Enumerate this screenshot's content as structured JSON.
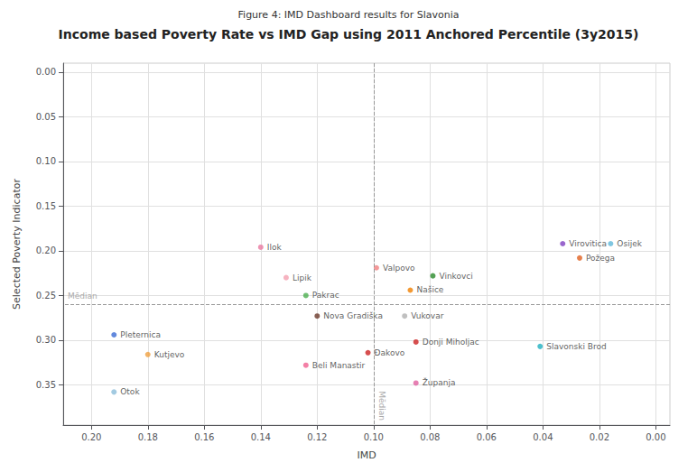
{
  "chart_data": {
    "type": "scatter",
    "subtitle": "Figure 4: IMD Dashboard results for Slavonia",
    "title": "Income based Poverty Rate vs IMD Gap using 2011 Anchored Percentile (3y2015)",
    "xlabel": "IMD",
    "ylabel": "Selected Poverty Indicator",
    "xlim": [
      0.21,
      -0.005
    ],
    "ylim": [
      0.395,
      -0.01
    ],
    "xticks": [
      {
        "value": 0.2,
        "label": "0.20"
      },
      {
        "value": 0.18,
        "label": "0.18"
      },
      {
        "value": 0.16,
        "label": "0.16"
      },
      {
        "value": 0.14,
        "label": "0.14"
      },
      {
        "value": 0.12,
        "label": "0.12"
      },
      {
        "value": 0.1,
        "label": "0.10"
      },
      {
        "value": 0.08,
        "label": "0.08"
      },
      {
        "value": 0.06,
        "label": "0.06"
      },
      {
        "value": 0.04,
        "label": "0.04"
      },
      {
        "value": 0.02,
        "label": "0.02"
      },
      {
        "value": 0.0,
        "label": "0.00"
      }
    ],
    "yticks": [
      {
        "value": 0.0,
        "label": "0.00"
      },
      {
        "value": 0.05,
        "label": "0.05"
      },
      {
        "value": 0.1,
        "label": "0.10"
      },
      {
        "value": 0.15,
        "label": "0.15"
      },
      {
        "value": 0.2,
        "label": "0.20"
      },
      {
        "value": 0.25,
        "label": "0.25"
      },
      {
        "value": 0.3,
        "label": "0.30"
      },
      {
        "value": 0.35,
        "label": "0.35"
      }
    ],
    "grid": true,
    "labels": [
      "Ilok",
      "Lipik",
      "Pakrac",
      "Nova Gradiška",
      "Beli Manastir",
      "Pleternica",
      "Kutjevo",
      "Otok",
      "Valpovo",
      "Našice",
      "Vinkovci",
      "Vukovar",
      "Donji Miholjac",
      "Đakovo",
      "Županja",
      "Virovitica",
      "Požega",
      "Osijek",
      "Slavonski Brod"
    ],
    "x": [
      0.14,
      0.131,
      0.124,
      0.12,
      0.124,
      0.192,
      0.18,
      0.192,
      0.099,
      0.087,
      0.079,
      0.089,
      0.085,
      0.102,
      0.085,
      0.033,
      0.027,
      0.016,
      0.041
    ],
    "values": [
      0.196,
      0.23,
      0.25,
      0.273,
      0.328,
      0.294,
      0.316,
      0.358,
      0.219,
      0.244,
      0.228,
      0.273,
      0.302,
      0.314,
      0.348,
      0.192,
      0.208,
      0.192,
      0.307
    ],
    "colors": [
      "#e879a0",
      "#f4a0b0",
      "#4caf50",
      "#6b3a2a",
      "#f06090",
      "#3b6cd4",
      "#f0a040",
      "#8bbdd9",
      "#f08080",
      "#f08000",
      "#2a8a2a",
      "#b0b0b0",
      "#cc2222",
      "#cc2222",
      "#e060a0",
      "#8040c0",
      "#e06020",
      "#60b8d8",
      "#20b0c0"
    ],
    "reference_lines": [
      {
        "axis": "x",
        "value": 0.099,
        "label": "Mēdian",
        "color": "#999999",
        "line_style": "dashed"
      },
      {
        "axis": "y",
        "value": 0.257,
        "label": "Mēdian",
        "color": "#999999",
        "line_style": "dashed"
      }
    ]
  }
}
